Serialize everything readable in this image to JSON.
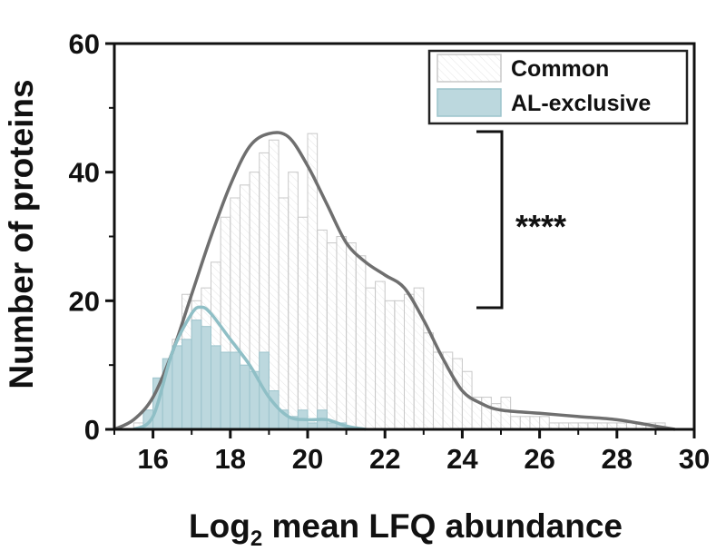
{
  "chart_data": {
    "type": "bar",
    "xlabel_main": "Log",
    "xlabel_sub": "2",
    "xlabel_rest": " mean LFQ abundance",
    "ylabel": "Number of proteins",
    "xlim": [
      15,
      30
    ],
    "ylim": [
      0,
      60
    ],
    "xticks": [
      16,
      18,
      20,
      22,
      24,
      26,
      28,
      30
    ],
    "yticks": [
      0,
      20,
      40,
      60
    ],
    "bin_width": 0.25,
    "colors": {
      "common_fill": "#ffffff",
      "common_edge": "#c8c8c8",
      "common_curve": "#6f6f6f",
      "al_fill": "#bcd8de",
      "al_edge": "#9cc4cc",
      "al_curve": "#8fbfc6"
    },
    "legend": {
      "position": "top-right",
      "entries": [
        "Common",
        "AL-exclusive"
      ]
    },
    "significance": "****",
    "series": [
      {
        "name": "Common",
        "bin_starts": [
          15.5,
          15.75,
          16.0,
          16.25,
          16.5,
          16.75,
          17.0,
          17.25,
          17.5,
          17.75,
          18.0,
          18.25,
          18.5,
          18.75,
          19.0,
          19.25,
          19.5,
          19.75,
          20.0,
          20.25,
          20.5,
          20.75,
          21.0,
          21.25,
          21.5,
          21.75,
          22.0,
          22.25,
          22.5,
          22.75,
          23.0,
          23.25,
          23.5,
          23.75,
          24.0,
          24.25,
          24.5,
          24.75,
          25.0,
          25.25,
          25.5,
          25.75,
          26.0,
          26.25,
          26.5,
          26.75,
          27.0,
          27.25,
          27.5,
          27.75,
          28.0,
          28.25,
          28.5,
          28.75,
          29.0
        ],
        "counts": [
          1,
          3,
          6,
          10,
          14,
          21,
          20,
          22,
          26,
          33,
          36,
          38,
          40,
          43,
          45,
          36,
          40,
          33,
          46,
          31,
          29,
          30,
          29,
          27,
          22,
          23,
          20,
          20,
          21,
          22,
          15,
          12,
          12,
          11,
          9,
          5,
          5,
          4,
          5,
          2,
          2,
          2,
          2,
          1,
          1,
          1,
          1,
          1,
          1,
          1,
          1,
          1,
          1,
          1,
          1
        ]
      },
      {
        "name": "AL-exclusive",
        "bin_starts": [
          15.75,
          16.0,
          16.25,
          16.5,
          16.75,
          17.0,
          17.25,
          17.5,
          17.75,
          18.0,
          18.25,
          18.5,
          18.75,
          19.0,
          19.25,
          19.5,
          19.75,
          20.0,
          20.25,
          20.5,
          20.75
        ],
        "counts": [
          3,
          8,
          11,
          13,
          14,
          17,
          16,
          13,
          12,
          12,
          10,
          9,
          12,
          6,
          3,
          2,
          3,
          1,
          3,
          1,
          1
        ]
      }
    ],
    "curves": [
      {
        "name": "Common",
        "x": [
          15,
          15.5,
          16,
          16.5,
          17,
          17.5,
          18,
          18.5,
          19,
          19.5,
          20,
          20.5,
          21,
          21.5,
          22,
          22.5,
          23,
          23.5,
          24,
          24.5,
          25,
          26,
          27,
          28,
          29,
          29.5
        ],
        "y": [
          0,
          1.5,
          5,
          12,
          21,
          30,
          38,
          44,
          46,
          45.5,
          41,
          35,
          29,
          26,
          24,
          22,
          17,
          11,
          6,
          4,
          3,
          2.5,
          2,
          1.5,
          0.5,
          0
        ]
      },
      {
        "name": "AL-exclusive",
        "x": [
          15.5,
          16,
          16.5,
          17,
          17.25,
          17.5,
          18,
          18.5,
          19,
          19.5,
          20,
          20.5,
          21,
          21.5
        ],
        "y": [
          0,
          2,
          12,
          18,
          19,
          18,
          14,
          10,
          5,
          2,
          1.5,
          1.5,
          0.5,
          0
        ]
      }
    ]
  }
}
